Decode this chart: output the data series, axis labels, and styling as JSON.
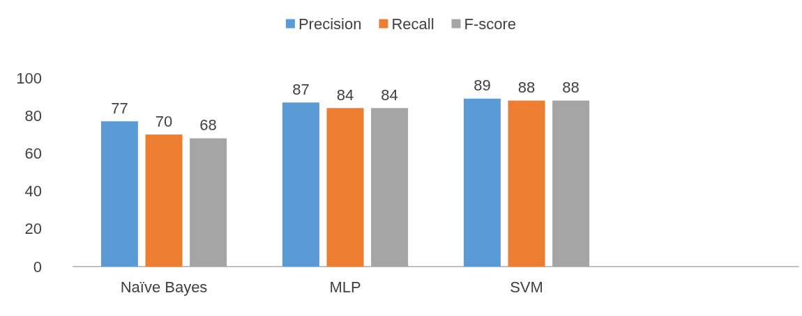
{
  "chart_data": {
    "type": "bar",
    "categories": [
      "Naïve Bayes",
      "MLP",
      "SVM",
      null
    ],
    "series": [
      {
        "name": "Precision",
        "color": "#5b9bd5",
        "values": [
          77,
          87,
          89,
          null
        ]
      },
      {
        "name": "Recall",
        "color": "#ed7d31",
        "values": [
          70,
          84,
          88,
          null
        ]
      },
      {
        "name": "F-score",
        "color": "#a5a5a5",
        "values": [
          68,
          84,
          88,
          null
        ]
      }
    ],
    "ylim": [
      0,
      100
    ],
    "yticks": [
      0,
      20,
      40,
      60,
      80,
      100
    ],
    "grid": false,
    "legend": "top",
    "data_labels": true
  }
}
